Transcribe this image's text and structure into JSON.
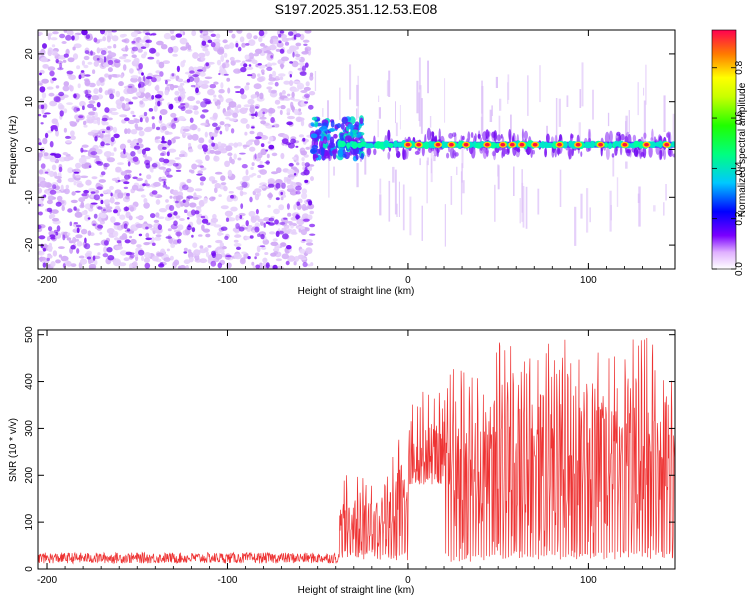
{
  "title": "S197.2025.351.12.53.E08",
  "chart_data": [
    {
      "id": "spectrogram",
      "type": "heatmap",
      "xlabel": "Height of straight line (km)",
      "ylabel": "Frequency (Hz)",
      "xlim": [
        -205,
        148
      ],
      "ylim": [
        -25,
        25
      ],
      "xticks": [
        {
          "value": -200,
          "label": "-200"
        },
        {
          "value": -100,
          "label": "-100"
        },
        {
          "value": 0,
          "label": "0"
        },
        {
          "value": 100,
          "label": "100"
        }
      ],
      "yticks": [
        {
          "value": -20,
          "label": "-20"
        },
        {
          "value": -10,
          "label": "-10"
        },
        {
          "value": 0,
          "label": "0"
        },
        {
          "value": 10,
          "label": "10"
        },
        {
          "value": 20,
          "label": "20"
        }
      ],
      "noise_region_end_x": -53,
      "signal_frequency_hz": 1,
      "colorbar": {
        "label": "Normalized spectral amplitude",
        "range": [
          0,
          0.95
        ],
        "ticks": [
          {
            "value": 0.0,
            "label": "0.0"
          },
          {
            "value": 0.2,
            "label": "0.2"
          },
          {
            "value": 0.4,
            "label": "0.4"
          },
          {
            "value": 0.6,
            "label": "0.6"
          },
          {
            "value": 0.8,
            "label": "0.8"
          }
        ]
      }
    },
    {
      "id": "snr",
      "type": "line",
      "xlabel": "Height of straight line (km)",
      "ylabel": "SNR (10 * v/v)",
      "xlim": [
        -205,
        148
      ],
      "ylim": [
        0,
        510
      ],
      "line_color": "#ee3333",
      "xticks": [
        {
          "value": -200,
          "label": "-200"
        },
        {
          "value": -100,
          "label": "-100"
        },
        {
          "value": 0,
          "label": "0"
        },
        {
          "value": 100,
          "label": "100"
        }
      ],
      "yticks": [
        {
          "value": 0,
          "label": "0"
        },
        {
          "value": 100,
          "label": "100"
        },
        {
          "value": 200,
          "label": "200"
        },
        {
          "value": 300,
          "label": "300"
        },
        {
          "value": 400,
          "label": "400"
        },
        {
          "value": 500,
          "label": "500"
        }
      ],
      "segments": [
        {
          "x_start": -205,
          "x_end": -38,
          "baseline": 20,
          "peak": 35
        },
        {
          "x_start": -38,
          "x_end": -10,
          "baseline": 20,
          "peak": 200
        },
        {
          "x_start": -10,
          "x_end": 0,
          "baseline": 15,
          "peak": 300
        },
        {
          "x_start": 0,
          "x_end": 20,
          "baseline": 180,
          "peak": 380
        },
        {
          "x_start": 20,
          "x_end": 45,
          "baseline": 15,
          "peak": 430
        },
        {
          "x_start": 45,
          "x_end": 148,
          "baseline": 20,
          "peak": 500
        }
      ]
    }
  ]
}
